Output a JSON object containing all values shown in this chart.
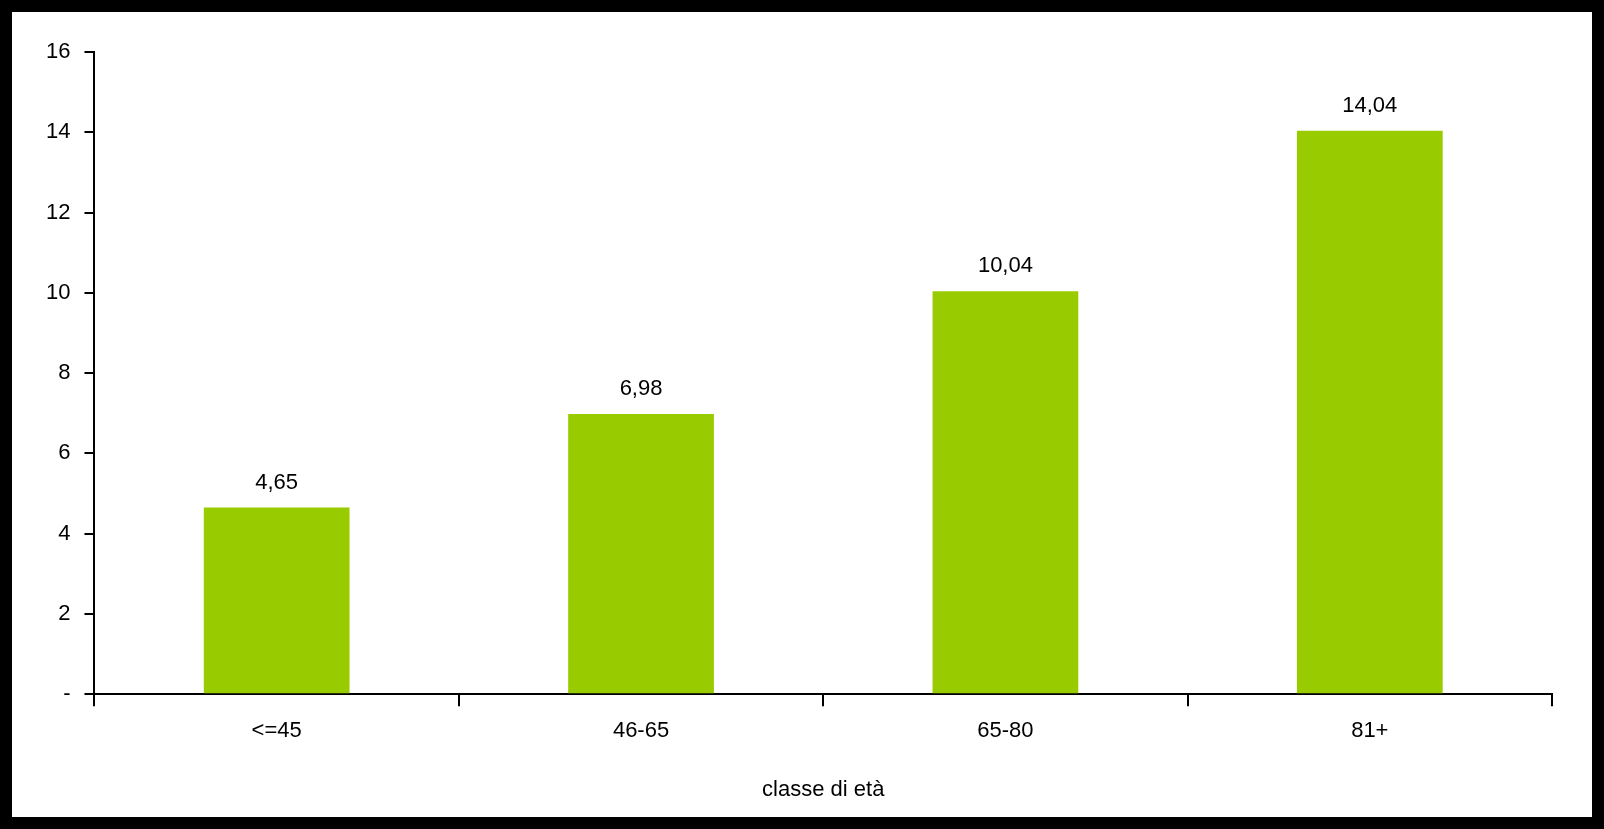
{
  "chart_data": {
    "type": "bar",
    "xlabel": "classe di età",
    "categories": [
      "<=45",
      "46-65",
      "65-80",
      "81+"
    ],
    "values": [
      4.65,
      6.98,
      10.04,
      14.04
    ],
    "value_labels": [
      "4,65",
      "6,98",
      "10,04",
      "14,04"
    ],
    "color": "#99cc00",
    "ylim": [
      0,
      16
    ],
    "yticks": [
      {
        "value": 0,
        "label": "-"
      },
      2,
      4,
      6,
      8,
      10,
      12,
      14,
      16
    ]
  }
}
